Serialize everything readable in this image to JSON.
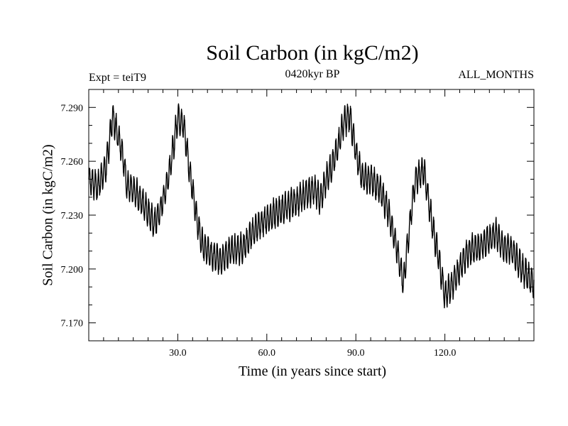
{
  "chart_data": {
    "type": "line",
    "title": "Soil Carbon (in kgC/m2)",
    "subtitle": "0420kyr BP",
    "left_annotation": "Expt = teiT9",
    "right_annotation": "ALL_MONTHS",
    "xlabel": "Time (in years since start)",
    "ylabel": "Soil Carbon (in kgC/m2)",
    "xlim": [
      0,
      150
    ],
    "ylim": [
      7.16,
      7.3
    ],
    "xticks": [
      30,
      60,
      90,
      120
    ],
    "xtick_labels": [
      "30.0",
      "60.0",
      "90.0",
      "120.0"
    ],
    "yticks": [
      7.17,
      7.2,
      7.23,
      7.26,
      7.29
    ],
    "ytick_labels": [
      "7.170",
      "7.200",
      "7.230",
      "7.260",
      "7.290"
    ],
    "seasonal_amplitude": 0.0075,
    "series": [
      {
        "name": "Soil Carbon",
        "x": [
          0,
          3,
          6,
          8,
          11,
          13,
          16,
          19,
          22,
          24,
          26,
          28,
          30,
          32,
          34,
          36,
          38,
          41,
          44,
          48,
          52,
          56,
          60,
          64,
          68,
          72,
          76,
          78,
          80,
          83,
          86,
          88,
          90,
          92,
          95,
          98,
          101,
          104,
          106,
          108,
          110,
          113,
          116,
          118,
          120,
          122,
          125,
          128,
          131,
          134,
          137,
          140,
          143,
          146,
          150
        ],
        "y": [
          7.25,
          7.246,
          7.258,
          7.285,
          7.268,
          7.246,
          7.242,
          7.235,
          7.225,
          7.232,
          7.245,
          7.262,
          7.285,
          7.28,
          7.255,
          7.232,
          7.215,
          7.208,
          7.205,
          7.21,
          7.212,
          7.222,
          7.228,
          7.232,
          7.236,
          7.24,
          7.245,
          7.238,
          7.25,
          7.262,
          7.282,
          7.285,
          7.265,
          7.252,
          7.25,
          7.245,
          7.232,
          7.21,
          7.192,
          7.222,
          7.25,
          7.255,
          7.222,
          7.205,
          7.185,
          7.19,
          7.2,
          7.21,
          7.212,
          7.215,
          7.22,
          7.212,
          7.21,
          7.2,
          7.192
        ]
      }
    ]
  }
}
